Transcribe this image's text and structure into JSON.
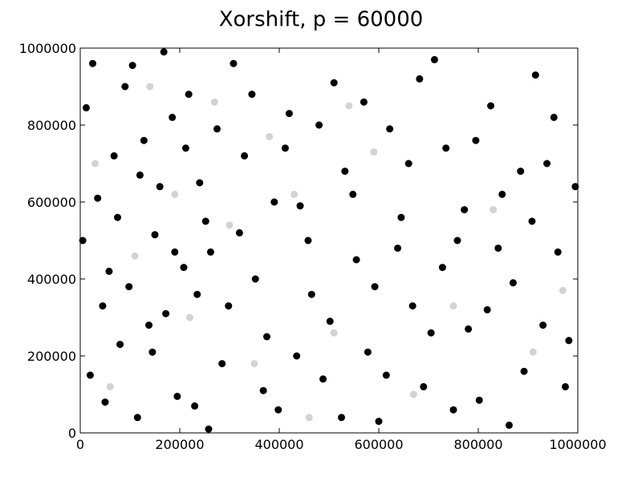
{
  "chart_data": {
    "type": "scatter",
    "title": "Xorshift, p = 60000",
    "xlim": [
      0,
      1000000
    ],
    "ylim": [
      0,
      1000000
    ],
    "xticks": [
      0,
      200000,
      400000,
      600000,
      800000,
      1000000
    ],
    "yticks": [
      0,
      200000,
      400000,
      600000,
      800000,
      1000000
    ],
    "grid": false,
    "series": [
      {
        "color": "#d3d3d3",
        "x": [
          30000,
          110000,
          190000,
          270000,
          350000,
          430000,
          510000,
          590000,
          670000,
          750000,
          830000,
          910000,
          970000,
          60000,
          140000,
          220000,
          300000,
          380000,
          460000,
          540000
        ],
        "values": [
          700000,
          460000,
          620000,
          860000,
          180000,
          620000,
          260000,
          730000,
          100000,
          330000,
          580000,
          210000,
          370000,
          120000,
          900000,
          300000,
          540000,
          770000,
          40000,
          850000
        ]
      },
      {
        "color": "#000000",
        "x": [
          12000,
          35000,
          58000,
          80000,
          105000,
          128000,
          150000,
          172000,
          195000,
          218000,
          240000,
          262000,
          285000,
          308000,
          330000,
          352000,
          375000,
          398000,
          420000,
          442000,
          465000,
          488000,
          510000,
          532000,
          555000,
          578000,
          600000,
          622000,
          645000,
          668000,
          690000,
          712000,
          735000,
          758000,
          780000,
          802000,
          825000,
          848000,
          870000,
          892000,
          915000,
          938000,
          960000,
          982000,
          20000,
          45000,
          68000,
          90000,
          115000,
          138000,
          160000,
          185000,
          208000,
          230000,
          252000,
          275000,
          298000,
          320000,
          345000,
          368000,
          390000,
          412000,
          435000,
          458000,
          480000,
          502000,
          525000,
          548000,
          570000,
          592000,
          615000,
          638000,
          660000,
          682000,
          705000,
          728000,
          750000,
          772000,
          795000,
          818000,
          840000,
          862000,
          885000,
          908000,
          930000,
          952000,
          975000,
          995000,
          5000,
          25000,
          50000,
          75000,
          98000,
          120000,
          145000,
          168000,
          190000,
          212000,
          235000,
          258000
        ],
        "values": [
          845000,
          610000,
          420000,
          230000,
          955000,
          760000,
          515000,
          310000,
          95000,
          880000,
          650000,
          470000,
          180000,
          960000,
          720000,
          400000,
          250000,
          60000,
          830000,
          590000,
          360000,
          140000,
          910000,
          680000,
          450000,
          210000,
          30000,
          790000,
          560000,
          330000,
          120000,
          970000,
          740000,
          500000,
          270000,
          85000,
          850000,
          620000,
          390000,
          160000,
          930000,
          700000,
          470000,
          240000,
          150000,
          330000,
          720000,
          900000,
          40000,
          280000,
          640000,
          820000,
          430000,
          70000,
          550000,
          790000,
          330000,
          520000,
          880000,
          110000,
          600000,
          740000,
          200000,
          500000,
          800000,
          290000,
          40000,
          620000,
          860000,
          380000,
          150000,
          480000,
          700000,
          920000,
          260000,
          430000,
          60000,
          580000,
          760000,
          320000,
          480000,
          20000,
          680000,
          550000,
          280000,
          820000,
          120000,
          640000,
          500000,
          960000,
          80000,
          560000,
          380000,
          670000,
          210000,
          990000,
          470000,
          740000,
          360000,
          10000
        ]
      }
    ]
  }
}
